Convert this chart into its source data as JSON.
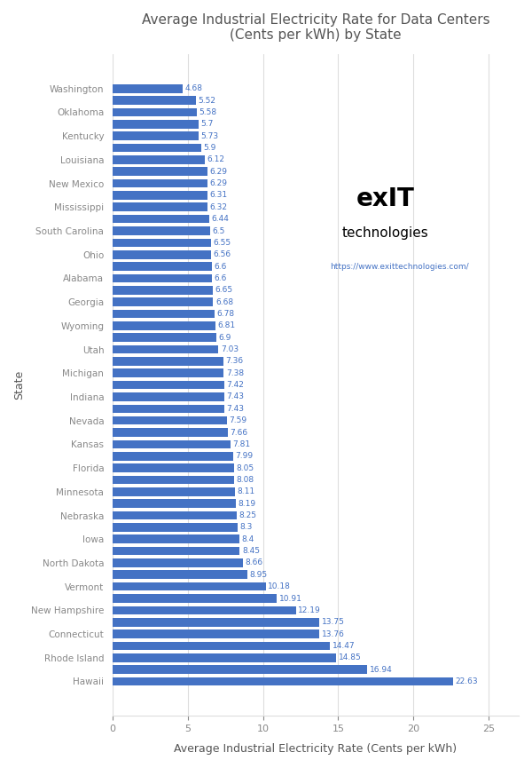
{
  "title": "Average Industrial Electricity Rate for Data Centers\n(Cents per kWh) by State",
  "xlabel": "Average Industrial Electricity Rate (Cents per kWh)",
  "ylabel": "State",
  "bar_color": "#4472C4",
  "value_color": "#4472C4",
  "background_color": "#ffffff",
  "xlim": [
    0,
    27
  ],
  "states": [
    "Washington",
    "",
    "Oklahoma",
    "",
    "Kentucky",
    "",
    "Louisiana",
    "",
    "New Mexico",
    "",
    "Mississippi",
    "",
    "South Carolina",
    "",
    "Ohio",
    "",
    "Alabama",
    "",
    "Georgia",
    "",
    "Wyoming",
    "",
    "Utah",
    "",
    "Michigan",
    "",
    "Indiana",
    "",
    "Nevada",
    "",
    "Kansas",
    "",
    "Florida",
    "",
    "Minnesota",
    "",
    "Nebraska",
    "",
    "Iowa",
    "",
    "North Dakota",
    "",
    "Vermont",
    "",
    "New Hampshire",
    "",
    "Connecticut",
    "",
    "Rhode Island",
    "",
    "Hawaii"
  ],
  "values": [
    4.68,
    5.52,
    5.58,
    5.7,
    5.73,
    5.9,
    6.12,
    6.29,
    6.29,
    6.31,
    6.32,
    6.44,
    6.5,
    6.55,
    6.56,
    6.6,
    6.6,
    6.65,
    6.68,
    6.78,
    6.81,
    6.9,
    7.03,
    7.36,
    7.38,
    7.42,
    7.43,
    7.43,
    7.59,
    7.66,
    7.81,
    7.99,
    8.05,
    8.08,
    8.11,
    8.19,
    8.25,
    8.3,
    8.4,
    8.45,
    8.66,
    8.95,
    10.18,
    10.91,
    12.19,
    13.75,
    13.76,
    14.47,
    14.85,
    16.94,
    22.63
  ],
  "title_color": "#555555",
  "xlabel_color": "#555555",
  "ylabel_color": "#555555",
  "tick_color": "#888888",
  "grid_color": "#dddddd",
  "logo_text_exit": "exIT",
  "logo_text_tech": "technologies",
  "logo_url": "https://www.exittechnologies.com/"
}
